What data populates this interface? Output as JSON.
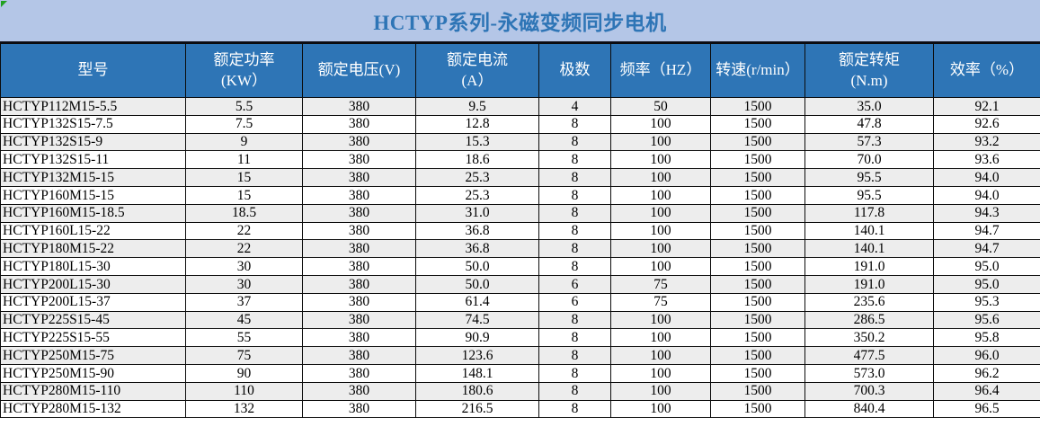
{
  "window": {
    "title": "HCTYP系列-永磁变频同步电机"
  },
  "icons": {
    "cell_error_flag": "green-triangle"
  },
  "colors": {
    "title_bg": "#b4c6e7",
    "title_text": "#2e75b6",
    "header_bg": "#2e75b6",
    "header_text": "#ffffff",
    "band_row_bg": "#ededed",
    "border": "#0c0c0c",
    "flag_green": "#21a121"
  },
  "table": {
    "columns": [
      "型号",
      "额定功率\n(KW）",
      "额定电压(V)",
      "额定电流\n(A）",
      "极数",
      "频率（HZ）",
      "转速(r/min）",
      "额定转矩\n(N.m)",
      "效率（%）"
    ],
    "rows": [
      [
        "HCTYP112M15-5.5",
        "5.5",
        "380",
        "9.5",
        "4",
        "50",
        "1500",
        "35.0",
        "92.1"
      ],
      [
        "HCTYP132S15-7.5",
        "7.5",
        "380",
        "12.8",
        "8",
        "100",
        "1500",
        "47.8",
        "92.6"
      ],
      [
        "HCTYP132S15-9",
        "9",
        "380",
        "15.3",
        "8",
        "100",
        "1500",
        "57.3",
        "93.2"
      ],
      [
        "HCTYP132S15-11",
        "11",
        "380",
        "18.6",
        "8",
        "100",
        "1500",
        "70.0",
        "93.6"
      ],
      [
        "HCTYP132M15-15",
        "15",
        "380",
        "25.3",
        "8",
        "100",
        "1500",
        "95.5",
        "94.0"
      ],
      [
        "HCTYP160M15-15",
        "15",
        "380",
        "25.3",
        "8",
        "100",
        "1500",
        "95.5",
        "94.0"
      ],
      [
        "HCTYP160M15-18.5",
        "18.5",
        "380",
        "31.0",
        "8",
        "100",
        "1500",
        "117.8",
        "94.3"
      ],
      [
        "HCTYP160L15-22",
        "22",
        "380",
        "36.8",
        "8",
        "100",
        "1500",
        "140.1",
        "94.7"
      ],
      [
        "HCTYP180M15-22",
        "22",
        "380",
        "36.8",
        "8",
        "100",
        "1500",
        "140.1",
        "94.7"
      ],
      [
        "HCTYP180L15-30",
        "30",
        "380",
        "50.0",
        "8",
        "100",
        "1500",
        "191.0",
        "95.0"
      ],
      [
        "HCTYP200L15-30",
        "30",
        "380",
        "50.0",
        "6",
        "75",
        "1500",
        "191.0",
        "95.0"
      ],
      [
        "HCTYP200L15-37",
        "37",
        "380",
        "61.4",
        "6",
        "75",
        "1500",
        "235.6",
        "95.3"
      ],
      [
        "HCTYP225S15-45",
        "45",
        "380",
        "74.5",
        "8",
        "100",
        "1500",
        "286.5",
        "95.6"
      ],
      [
        "HCTYP225S15-55",
        "55",
        "380",
        "90.9",
        "8",
        "100",
        "1500",
        "350.2",
        "95.8"
      ],
      [
        "HCTYP250M15-75",
        "75",
        "380",
        "123.6",
        "8",
        "100",
        "1500",
        "477.5",
        "96.0"
      ],
      [
        "HCTYP250M15-90",
        "90",
        "380",
        "148.1",
        "8",
        "100",
        "1500",
        "573.0",
        "96.2"
      ],
      [
        "HCTYP280M15-110",
        "110",
        "380",
        "180.6",
        "8",
        "100",
        "1500",
        "700.3",
        "96.4"
      ],
      [
        "HCTYP280M15-132",
        "132",
        "380",
        "216.5",
        "8",
        "100",
        "1500",
        "840.4",
        "96.5"
      ]
    ]
  }
}
